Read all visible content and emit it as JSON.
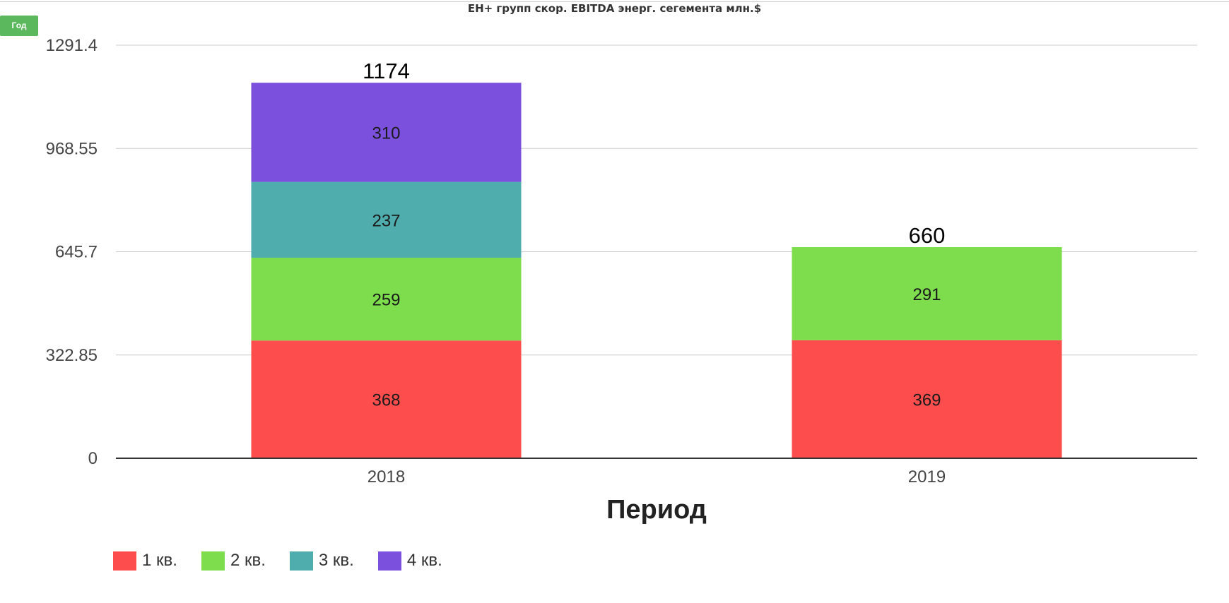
{
  "controls": {
    "period_button": "Год"
  },
  "chart_data": {
    "type": "bar",
    "stacked": true,
    "title": "EH+ групп скор. EBITDA энерг. сегемента млн.$",
    "xlabel": "Период",
    "ylabel": "",
    "categories": [
      "2018",
      "2019"
    ],
    "series": [
      {
        "name": "1 кв.",
        "color": "#fd4d4d",
        "values": [
          368,
          369
        ]
      },
      {
        "name": "2 кв.",
        "color": "#7ddd4c",
        "values": [
          259,
          291
        ]
      },
      {
        "name": "3 кв.",
        "color": "#4fadad",
        "values": [
          237,
          null
        ]
      },
      {
        "name": "4 кв.",
        "color": "#7b50dc",
        "values": [
          310,
          null
        ]
      }
    ],
    "totals": [
      1174,
      660
    ],
    "ylim": [
      0,
      1291.4
    ],
    "yticks": [
      "0",
      "322.85",
      "645.7",
      "968.55",
      "1291.4"
    ],
    "grid": true,
    "legend_position": "bottom-left"
  }
}
